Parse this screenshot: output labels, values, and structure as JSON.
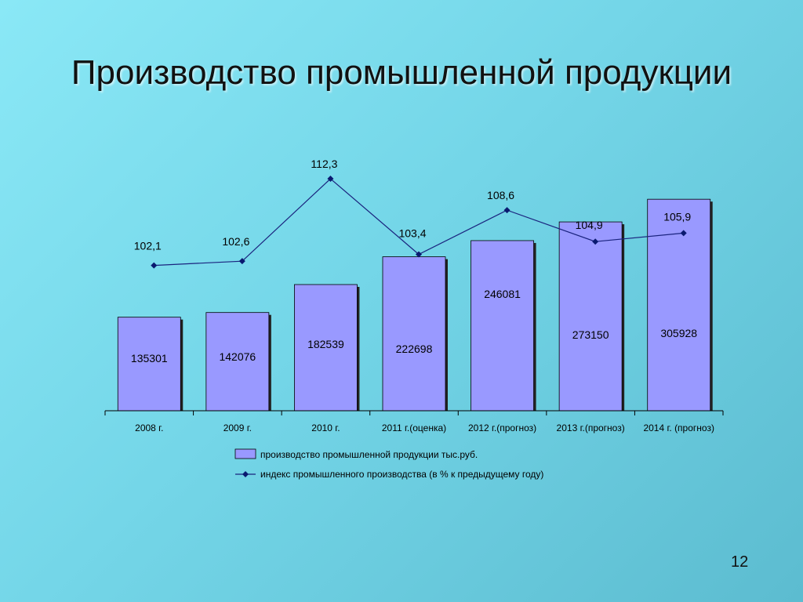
{
  "slide": {
    "title": "Производство промышленной продукции",
    "page_number": "12"
  },
  "colors": {
    "bar_fill": "#9999ff",
    "bar_edge": "#000000",
    "line": "#1a237e",
    "marker": "#0a1a70"
  },
  "chart_data": {
    "type": "bar",
    "categories": [
      "2008 г.",
      "2009 г.",
      "2010 г.",
      "2011 г.(оценка)",
      "2012 г.(прогноз)",
      "2013 г.(прогноз)",
      "2014 г. (прогноз)"
    ],
    "series": [
      {
        "name": "производство промышленной продукции тыс.руб.",
        "type": "bar",
        "values": [
          135301,
          142076,
          182539,
          222698,
          246081,
          273150,
          305928
        ],
        "data_labels": [
          "135301",
          "142076",
          "182539",
          "222698",
          "246081",
          "273150",
          "305928"
        ]
      },
      {
        "name": "индекс промышленного производства  (в % к предыдущему году)",
        "type": "line",
        "values": [
          102.1,
          102.6,
          112.3,
          103.4,
          108.6,
          104.9,
          105.9
        ],
        "data_labels": [
          "102,1",
          "102,6",
          "112,3",
          "103,4",
          "108,6",
          "104,9",
          "105,9"
        ]
      }
    ],
    "ylim_bars": [
      0,
      322000
    ],
    "ylim_line": [
      85,
      112.3
    ],
    "axes_visible": false,
    "grid": false,
    "legend_position": "bottom"
  }
}
